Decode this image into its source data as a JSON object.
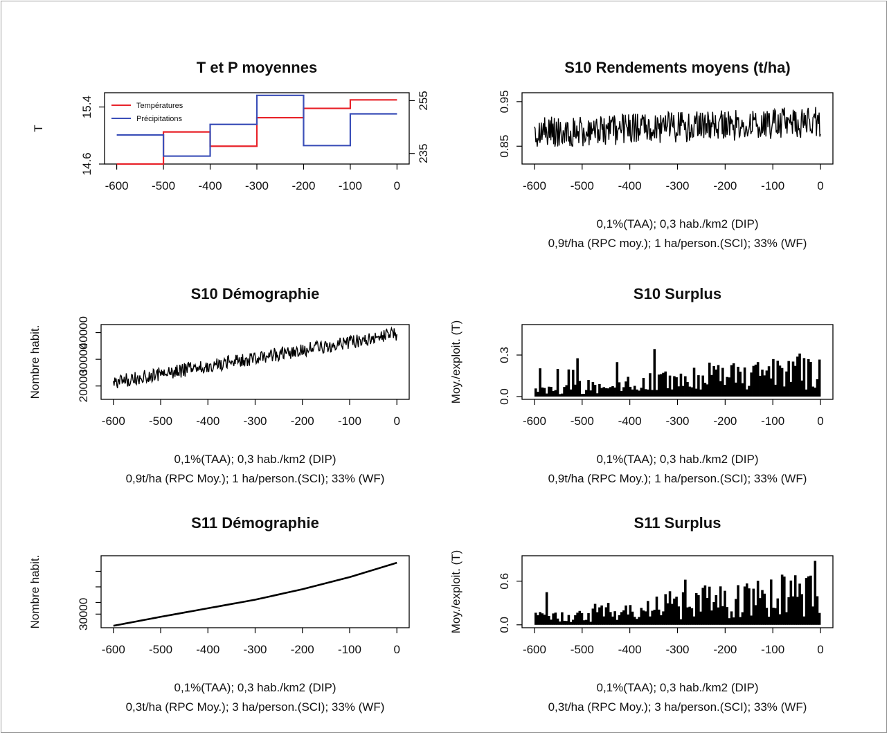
{
  "chart_data": [
    {
      "id": "p1",
      "type": "line",
      "title": "T et P moyennes",
      "ylabel": "T",
      "xlim": [
        -600,
        0
      ],
      "xticks": [
        -600,
        -500,
        -400,
        -300,
        -200,
        -100,
        0
      ],
      "xtick_labels": [
        "-600",
        "-500",
        "-400",
        "-300",
        "-200",
        "-100",
        "0"
      ],
      "ylim": [
        14.6,
        15.6
      ],
      "yticks": [
        14.6,
        15.4
      ],
      "ytick_labels": [
        "14.6",
        "15.4"
      ],
      "y2lim": [
        231,
        258
      ],
      "y2ticks": [
        235,
        255
      ],
      "y2tick_labels": [
        "235",
        "255"
      ],
      "legend": {
        "position": "top-left",
        "entries": [
          "Températures",
          "Précipitations"
        ]
      },
      "series": [
        {
          "name": "Températures",
          "color": "#e8232a",
          "axis": "left",
          "step": true,
          "x": [
            -600,
            -500,
            -400,
            -300,
            -200,
            -100,
            0
          ],
          "values": [
            14.6,
            15.05,
            14.85,
            15.25,
            15.38,
            15.5,
            15.5
          ]
        },
        {
          "name": "Précipitations",
          "color": "#3b4fb8",
          "axis": "right",
          "step": true,
          "x": [
            -600,
            -500,
            -400,
            -300,
            -200,
            -100,
            0
          ],
          "values": [
            242,
            234,
            246,
            257,
            238,
            250,
            250
          ]
        }
      ]
    },
    {
      "id": "p2",
      "type": "line",
      "title": "S10 Rendements moyens (t/ha)",
      "caption": [
        "0,1%(TAA); 0,3 hab./km2 (DIP)",
        "0,9t/ha (RPC moy.); 1 ha/person.(SCI); 33% (WF)"
      ],
      "xlim": [
        -600,
        0
      ],
      "xticks": [
        -600,
        -500,
        -400,
        -300,
        -200,
        -100,
        0
      ],
      "xtick_labels": [
        "-600",
        "-500",
        "-400",
        "-300",
        "-200",
        "-100",
        "0"
      ],
      "ylim": [
        0.81,
        0.97
      ],
      "yticks": [
        0.85,
        0.95
      ],
      "ytick_labels": [
        "0.85",
        "0.95"
      ],
      "series": [
        {
          "color": "#000000",
          "noisy": true,
          "start": [
            -600,
            0.88
          ],
          "end": [
            0,
            0.905
          ],
          "amplitude": 0.035,
          "min": 0.815,
          "max": 0.965
        }
      ]
    },
    {
      "id": "p3",
      "type": "line",
      "title": "S10 Démographie",
      "ylabel": "Nombre habit.",
      "caption": [
        "0,1%(TAA); 0,3 hab./km2 (DIP)",
        "0,9t/ha (RPC Moy.); 1 ha/person.(SCI); 33% (WF)"
      ],
      "xlim": [
        -600,
        0
      ],
      "xticks": [
        -600,
        -500,
        -400,
        -300,
        -200,
        -100,
        0
      ],
      "xtick_labels": [
        "-600",
        "-500",
        "-400",
        "-300",
        "-200",
        "-100",
        "0"
      ],
      "ylim": [
        15000,
        43000
      ],
      "yticks": [
        20000,
        30000,
        40000
      ],
      "ytick_labels": [
        "20000",
        "30000",
        "40000"
      ],
      "series": [
        {
          "color": "#000000",
          "noisy": true,
          "start": [
            -600,
            21500
          ],
          "end": [
            0,
            39500
          ],
          "amplitude": 2600,
          "min": 16000,
          "max": 42000
        }
      ]
    },
    {
      "id": "p4",
      "type": "bar",
      "title": "S10 Surplus",
      "ylabel": "Moy./exploit. (T)",
      "caption": [
        "0,1%(TAA); 0,3 hab./km2 (DIP)",
        "0,9t/ha (RPC Moy.); 1 ha/person.(SCI); 33% (WF)"
      ],
      "xlim": [
        -600,
        0
      ],
      "xticks": [
        -600,
        -500,
        -400,
        -300,
        -200,
        -100,
        0
      ],
      "xtick_labels": [
        "-600",
        "-500",
        "-400",
        "-300",
        "-200",
        "-100",
        "0"
      ],
      "ylim": [
        -0.02,
        0.52
      ],
      "yticks": [
        0.0,
        0.3
      ],
      "ytick_labels": [
        "0.0",
        "0.3"
      ],
      "series": [
        {
          "color": "#000000",
          "noisy": true,
          "start": [
            -600,
            0.05
          ],
          "end": [
            0,
            0.26
          ],
          "amplitude": 0.14,
          "min": 0.0,
          "max": 0.46
        }
      ]
    },
    {
      "id": "p5",
      "type": "line",
      "title": "S11 Démographie",
      "ylabel": "Nombre habit.",
      "caption": [
        "0,1%(TAA); 0,3 hab./km2 (DIP)",
        "0,3t/ha (RPC Moy.); 3 ha/person.(SCI); 33% (WF)"
      ],
      "xlim": [
        -600,
        0
      ],
      "xticks": [
        -600,
        -500,
        -400,
        -300,
        -200,
        -100,
        0
      ],
      "xtick_labels": [
        "-600",
        "-500",
        "-400",
        "-300",
        "-200",
        "-100",
        "0"
      ],
      "ylim": [
        26500,
        45000
      ],
      "yticks": [
        30000
      ],
      "ytick_labels": [
        "30000"
      ],
      "extra_yticks": [
        33000,
        37000,
        41000
      ],
      "series": [
        {
          "color": "#000000",
          "curve": true,
          "x": [
            -600,
            -500,
            -400,
            -300,
            -200,
            -100,
            0
          ],
          "values": [
            27000,
            29300,
            31500,
            33700,
            36400,
            39500,
            43200
          ]
        }
      ]
    },
    {
      "id": "p6",
      "type": "bar",
      "title": "S11 Surplus",
      "ylabel": "Moy./exploit. (T)",
      "caption": [
        "0,1%(TAA); 0,3 hab./km2 (DIP)",
        "0,3t/ha (RPC Moy.); 3 ha/person.(SCI); 33% (WF)"
      ],
      "xlim": [
        -600,
        0
      ],
      "xticks": [
        -600,
        -500,
        -400,
        -300,
        -200,
        -100,
        0
      ],
      "xtick_labels": [
        "-600",
        "-500",
        "-400",
        "-300",
        "-200",
        "-100",
        "0"
      ],
      "ylim": [
        -0.04,
        0.95
      ],
      "yticks": [
        0.0,
        0.6
      ],
      "ytick_labels": [
        "0.0",
        "0.6"
      ],
      "series": [
        {
          "color": "#000000",
          "noisy": true,
          "start": [
            -600,
            0.12
          ],
          "end": [
            0,
            0.55
          ],
          "amplitude": 0.22,
          "min": 0.0,
          "max": 0.88
        }
      ]
    }
  ]
}
